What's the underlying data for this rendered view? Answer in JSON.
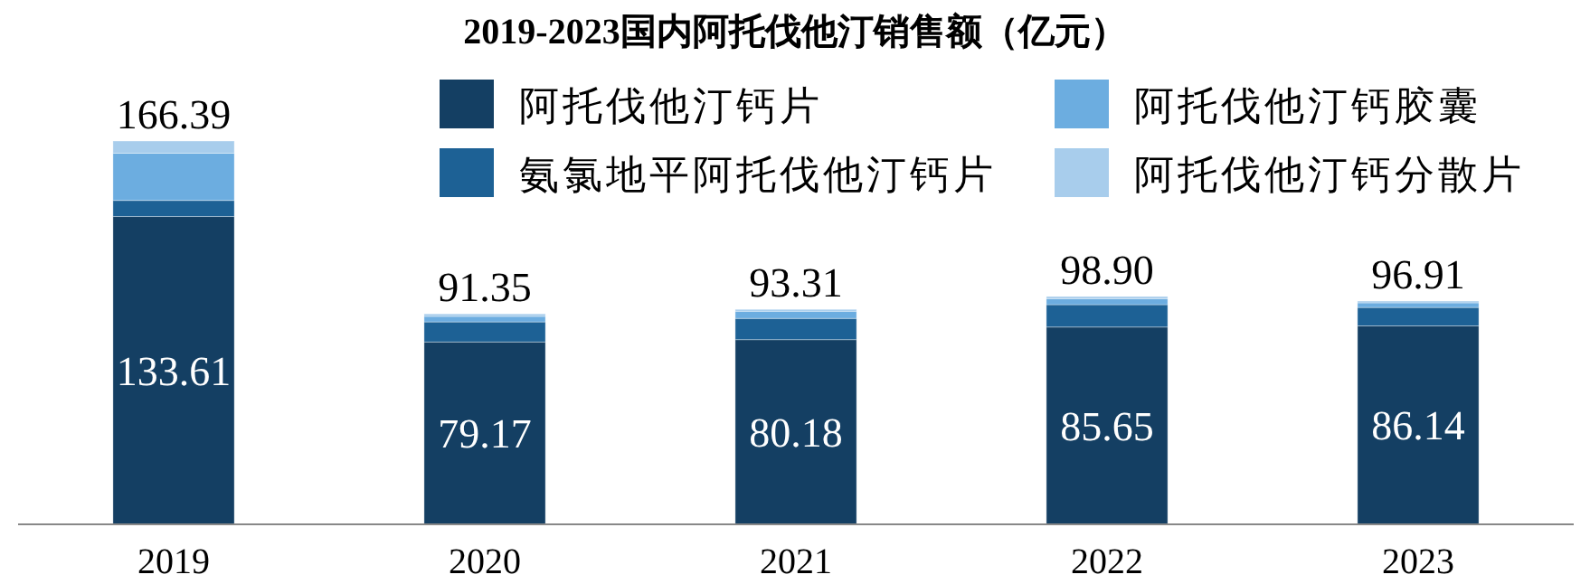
{
  "chart_data": {
    "type": "bar",
    "stacked": true,
    "title": "2019-2023国内阿托伐他汀销售额（亿元）",
    "categories": [
      "2019",
      "2020",
      "2021",
      "2022",
      "2023"
    ],
    "series": [
      {
        "name": "阿托伐他汀钙片",
        "color": "#143f63",
        "values": [
          133.61,
          79.17,
          80.18,
          85.65,
          86.14
        ],
        "value_labels": [
          "133.61",
          "79.17",
          "80.18",
          "85.65",
          "86.14"
        ]
      },
      {
        "name": "氨氯地平阿托伐他汀钙片",
        "color": "#1d6195",
        "values": [
          7.0,
          8.7,
          9.2,
          9.7,
          8.0
        ]
      },
      {
        "name": "阿托伐他汀钙胶囊",
        "color": "#6cade0",
        "values": [
          20.5,
          2.4,
          3.1,
          2.6,
          2.0
        ]
      },
      {
        "name": "阿托伐他汀钙分散片",
        "color": "#a8cdec",
        "values": [
          5.28,
          1.08,
          0.83,
          0.95,
          0.77
        ]
      }
    ],
    "totals": [
      "166.39",
      "91.35",
      "93.31",
      "98.90",
      "96.91"
    ],
    "legend": "top right"
  }
}
